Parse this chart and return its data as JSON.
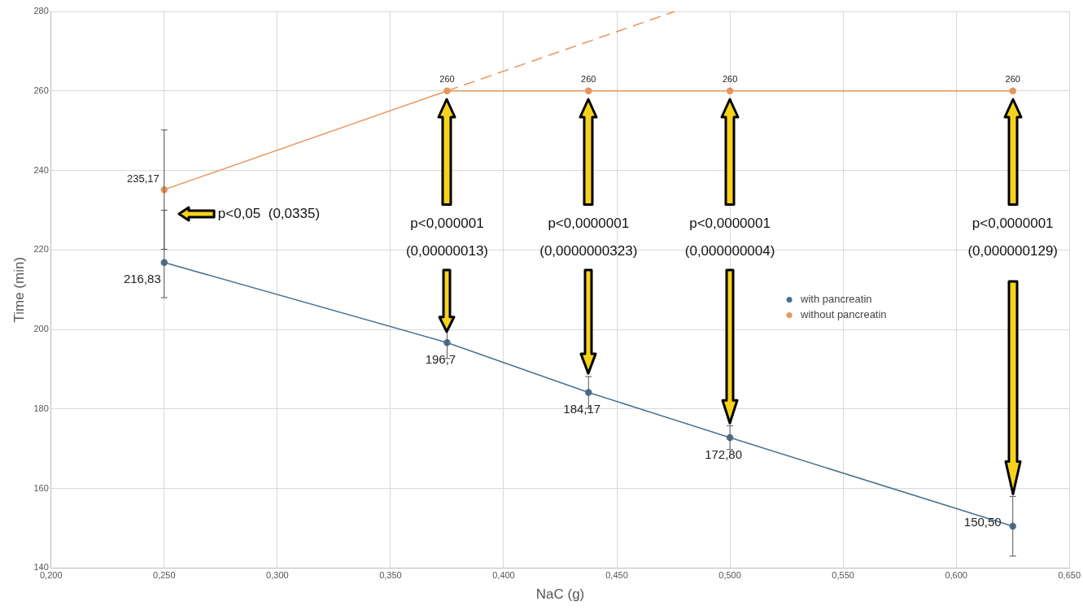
{
  "chart_data": {
    "type": "line",
    "xlabel": "NaC (g)",
    "ylabel": "Time (min)",
    "xlim": [
      0.2,
      0.65
    ],
    "xticks": [
      {
        "value": 0.2,
        "label": "0,200"
      },
      {
        "value": 0.25,
        "label": "0,250"
      },
      {
        "value": 0.3,
        "label": "0,300"
      },
      {
        "value": 0.35,
        "label": "0,350"
      },
      {
        "value": 0.4,
        "label": "0,400"
      },
      {
        "value": 0.45,
        "label": "0,450"
      },
      {
        "value": 0.5,
        "label": "0,500"
      },
      {
        "value": 0.55,
        "label": "0,550"
      },
      {
        "value": 0.6,
        "label": "0,600"
      },
      {
        "value": 0.65,
        "label": "0,650"
      }
    ],
    "ylim": [
      140,
      280
    ],
    "yticks": [
      140,
      160,
      180,
      200,
      220,
      240,
      260,
      280
    ],
    "grid": true,
    "legend": "right",
    "marker": "circle",
    "series": [
      {
        "name": "with pancreatin",
        "color": "#4a7090",
        "x": [
          0.25,
          0.375,
          0.4375,
          0.5,
          0.625
        ],
        "values": [
          216.83,
          196.7,
          184.17,
          172.8,
          150.5
        ],
        "errors": [
          [
            208,
            230
          ],
          4,
          4,
          3,
          7.5
        ],
        "value_labels": [
          "216,83",
          "196,7",
          "184,17",
          "172,80",
          "150,50"
        ]
      },
      {
        "name": "without pancreatin",
        "color": "#e8945a",
        "x": [
          0.25,
          0.375,
          0.4375,
          0.5,
          0.625
        ],
        "values": [
          235.17,
          260,
          260,
          260,
          260
        ],
        "errors": [
          15,
          null,
          null,
          null,
          null
        ],
        "value_labels": [
          "235,17",
          "260",
          "260",
          "260",
          "260"
        ]
      },
      {
        "type": "line",
        "color": "#e8945a",
        "line_style": "dashed",
        "marker": "none",
        "x": [
          0.375,
          0.4757
        ],
        "values": [
          260,
          280
        ]
      }
    ],
    "annotations": [
      "p<0,05  (0,0335)",
      "p<0,000001",
      "(0,00000013)",
      "p<0,0000001",
      "(0,0000000323)",
      "p<0,0000001",
      "(0,000000004)",
      "p<0,0000001",
      "(0,000000129)"
    ]
  }
}
